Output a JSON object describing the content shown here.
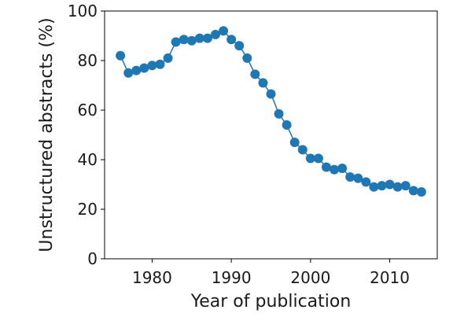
{
  "chart_data": {
    "type": "line",
    "title": "",
    "xlabel": "Year of publication",
    "ylabel": "Unstructured abstracts (%)",
    "xlim": [
      1974,
      2016
    ],
    "ylim": [
      0,
      100
    ],
    "xticks": [
      1980,
      1990,
      2000,
      2010
    ],
    "yticks": [
      0,
      20,
      40,
      60,
      80,
      100
    ],
    "grid": false,
    "legend": "none",
    "series": [
      {
        "color": "#1f77b4",
        "marker": "circle",
        "x": [
          1976,
          1977,
          1978,
          1979,
          1980,
          1981,
          1982,
          1983,
          1984,
          1985,
          1986,
          1987,
          1988,
          1989,
          1990,
          1991,
          1992,
          1993,
          1994,
          1995,
          1996,
          1997,
          1998,
          1999,
          2000,
          2001,
          2002,
          2003,
          2004,
          2005,
          2006,
          2007,
          2008,
          2009,
          2010,
          2011,
          2012,
          2013,
          2014
        ],
        "y": [
          82,
          75,
          76,
          77,
          78,
          78.5,
          81,
          87.5,
          88.5,
          88,
          89,
          89,
          90.5,
          92,
          88.5,
          86,
          81,
          74.5,
          71,
          66.5,
          58.5,
          54,
          47,
          44,
          40.5,
          40.5,
          37,
          36,
          36.5,
          33,
          32.5,
          31,
          29,
          29.5,
          30,
          29,
          29.5,
          27.5,
          27
        ]
      }
    ]
  }
}
